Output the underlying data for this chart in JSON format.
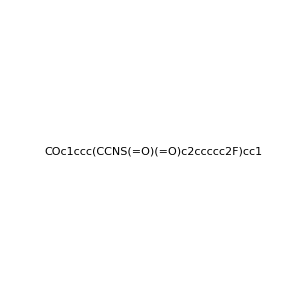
{
  "smiles": "COc1ccc(CCNS(=O)(=O)c2ccccc2F)cc1",
  "image_size": 300,
  "background_color": "#f0f0f0",
  "atom_colors": {
    "N": "#0000ff",
    "O": "#ff0000",
    "F": "#00cc00",
    "S": "#ffff00"
  }
}
